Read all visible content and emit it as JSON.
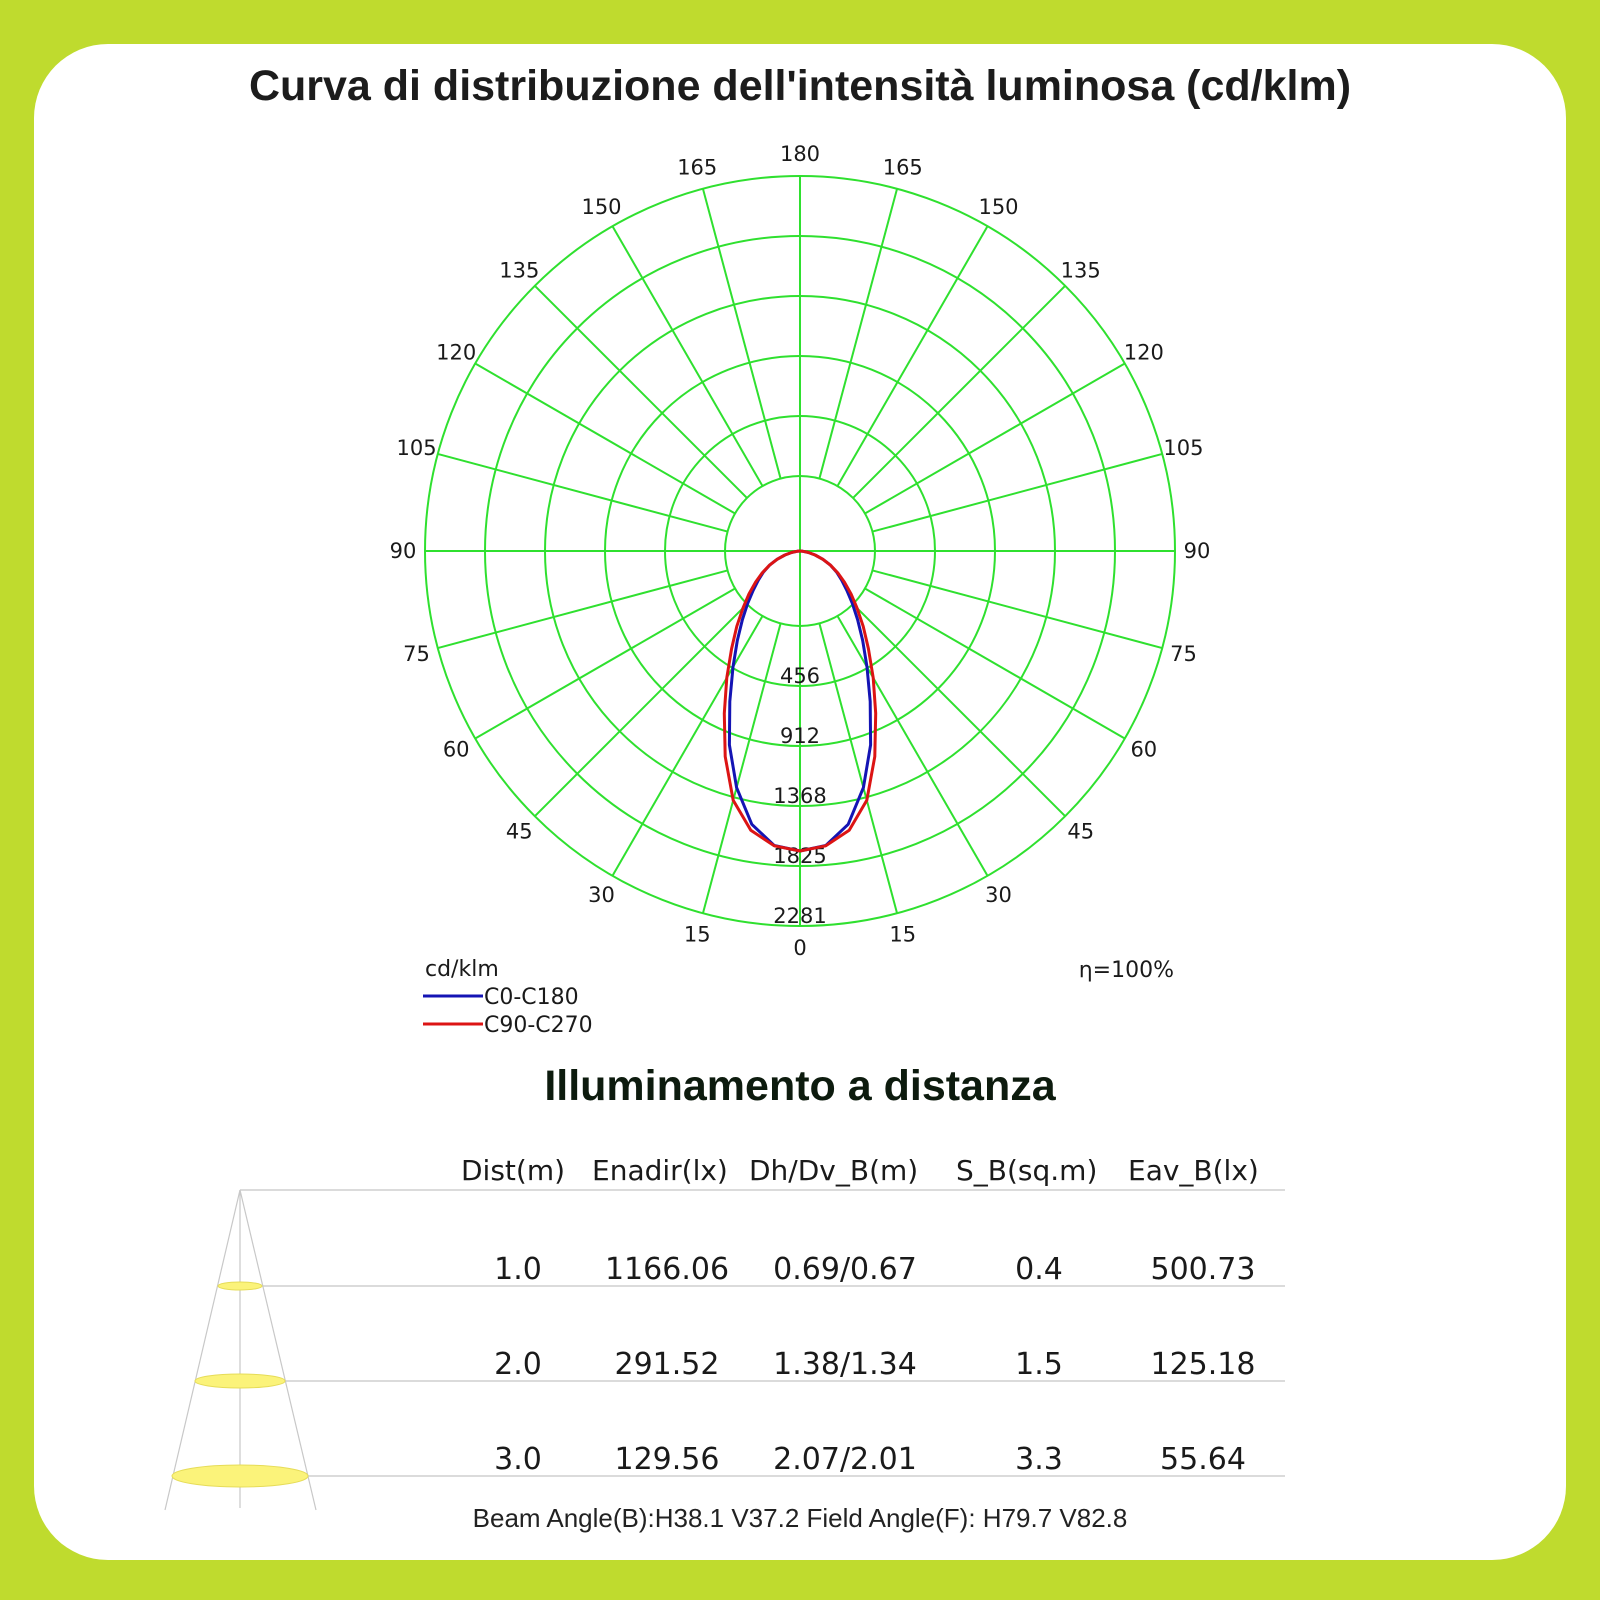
{
  "title": "Curva di distribuzione dell'intensità luminosa (cd/klm)",
  "chart_data": {
    "type": "polar",
    "unit_label": "cd/klm",
    "efficiency": "η=100%",
    "radial_ticks": [
      456,
      912,
      1368,
      1825,
      2281
    ],
    "radial_max": 2281,
    "angle_labels_left": [
      "0",
      "15",
      "30",
      "45",
      "60",
      "75",
      "90",
      "105",
      "120",
      "135",
      "150",
      "165",
      "180"
    ],
    "angle_labels_right": [
      "15",
      "30",
      "45",
      "60",
      "75",
      "90",
      "105",
      "120",
      "135",
      "150",
      "165"
    ],
    "grid_color": "#2fe02f",
    "series": [
      {
        "name": "C0-C180",
        "color": "#1414b4",
        "angles": [
          0,
          5,
          10,
          15,
          20,
          25,
          30,
          35,
          40,
          45,
          50,
          55,
          60,
          65,
          70,
          75,
          80,
          85,
          90
        ],
        "values": [
          1825,
          1798,
          1688,
          1490,
          1255,
          1010,
          815,
          665,
          545,
          450,
          372,
          310,
          258,
          205,
          148,
          95,
          50,
          18,
          0
        ]
      },
      {
        "name": "C90-C270",
        "color": "#dc1414",
        "angles": [
          0,
          5,
          10,
          15,
          20,
          25,
          30,
          35,
          40,
          45,
          50,
          55,
          60,
          65,
          70,
          75,
          80,
          85,
          90
        ],
        "values": [
          1825,
          1800,
          1725,
          1570,
          1330,
          1090,
          890,
          725,
          598,
          490,
          405,
          330,
          265,
          205,
          148,
          95,
          50,
          18,
          0
        ]
      }
    ]
  },
  "distance_section": {
    "title": "Illuminamento a distanza",
    "columns": [
      "Dist(m)",
      "Enadir(lx)",
      "Dh/Dv_B(m)",
      "S_B(sq.m)",
      "Eav_B(lx)"
    ],
    "rows": [
      [
        "1.0",
        "1166.06",
        "0.69/0.67",
        "0.4",
        "500.73"
      ],
      [
        "2.0",
        "291.52",
        "1.38/1.34",
        "1.5",
        "125.18"
      ],
      [
        "3.0",
        "129.56",
        "2.07/2.01",
        "3.3",
        "55.64"
      ]
    ],
    "footer": "Beam Angle(B):H38.1 V37.2 Field Angle(F): H79.7 V82.8"
  }
}
